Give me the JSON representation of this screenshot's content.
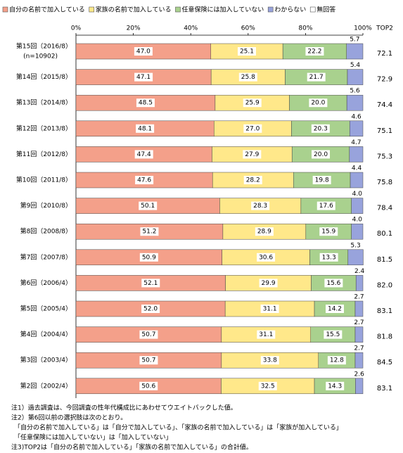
{
  "chart_data": {
    "type": "stacked-bar-horizontal",
    "categories": [
      "第15回（2016/8）",
      "第14回（2015/8）",
      "第13回（2014/8）",
      "第12回（2013/8）",
      "第11回（2012/8）",
      "第10回（2011/8）",
      "第9回（2010/8）",
      "第8回（2008/8）",
      "第7回（2007/8）",
      "第6回（2006/4）",
      "第5回（2005/4）",
      "第4回（2004/4）",
      "第3回（2003/4）",
      "第2回（2002/4）"
    ],
    "first_category_note": "(n=10902)",
    "xlim": [
      0,
      100
    ],
    "xticks": [
      {
        "value": 0,
        "label": "0%"
      },
      {
        "value": 20,
        "label": "20%"
      },
      {
        "value": 40,
        "label": "40%"
      },
      {
        "value": 60,
        "label": "60%"
      },
      {
        "value": 80,
        "label": "80%"
      },
      {
        "value": 100,
        "label": "100%"
      }
    ],
    "series": [
      {
        "name": "自分の名前で加入している",
        "color": "#f4a08a",
        "values": [
          47.0,
          47.1,
          48.5,
          48.1,
          47.4,
          47.6,
          50.1,
          51.2,
          50.9,
          52.1,
          52.0,
          50.7,
          50.7,
          50.6
        ],
        "value_labels": [
          "47.0",
          "47.1",
          "48.5",
          "48.1",
          "47.4",
          "47.6",
          "50.1",
          "51.2",
          "50.9",
          "52.1",
          "52.0",
          "50.7",
          "50.7",
          "50.6"
        ]
      },
      {
        "name": "家族の名前で加入している",
        "color": "#ffe88a",
        "values": [
          25.1,
          25.8,
          25.9,
          27.0,
          27.9,
          28.2,
          28.3,
          28.9,
          30.6,
          29.9,
          31.1,
          31.1,
          33.8,
          32.5
        ],
        "value_labels": [
          "25.1",
          "25.8",
          "25.9",
          "27.0",
          "27.9",
          "28.2",
          "28.3",
          "28.9",
          "30.6",
          "29.9",
          "31.1",
          "31.1",
          "33.8",
          "32.5"
        ]
      },
      {
        "name": "任意保険には加入していない",
        "color": "#a9d18e",
        "values": [
          22.2,
          21.7,
          20.0,
          20.3,
          20.0,
          19.8,
          17.6,
          15.9,
          13.3,
          15.6,
          14.2,
          15.5,
          12.8,
          14.3
        ],
        "value_labels": [
          "22.2",
          "21.7",
          "20.0",
          "20.3",
          "20.0",
          "19.8",
          "17.6",
          "15.9",
          "13.3",
          "15.6",
          "14.2",
          "15.5",
          "12.8",
          "14.3"
        ]
      },
      {
        "name": "わからない",
        "color": "#98a3dc",
        "values": [
          5.7,
          5.4,
          5.6,
          4.6,
          4.7,
          4.4,
          4.0,
          4.0,
          5.3,
          2.4,
          2.7,
          2.7,
          2.7,
          2.6
        ],
        "value_labels": [
          "5.7",
          "5.4",
          "5.6",
          "4.6",
          "4.7",
          "4.4",
          "4.0",
          "4.0",
          "5.3",
          "2.4",
          "2.7",
          "2.7",
          "2.7",
          "2.6"
        ]
      },
      {
        "name": "無回答",
        "color": "#ffffff",
        "values": [
          0,
          0,
          0,
          0,
          0,
          0,
          0,
          0,
          0,
          0,
          0,
          0,
          0,
          0
        ]
      }
    ],
    "top2": {
      "header": "TOP2",
      "values": [
        72.1,
        72.9,
        74.4,
        75.1,
        75.3,
        75.8,
        78.4,
        80.1,
        81.5,
        82.0,
        83.1,
        81.8,
        84.5,
        83.1
      ],
      "value_labels": [
        "72.1",
        "72.9",
        "74.4",
        "75.1",
        "75.3",
        "75.8",
        "78.4",
        "80.1",
        "81.5",
        "82.0",
        "83.1",
        "81.8",
        "84.5",
        "83.1"
      ]
    },
    "notes": [
      "注1）過去調査は、今回調査の性年代構成比にあわせてウエイトバックした値。",
      "注2）第6回以前の選択肢は次のとおり。",
      "「自分の名前で加入している」は「自分で加入している」、「家族の名前で加入している」は「家族が加入している」",
      "「任意保険には加入していない」は「加入していない」",
      "注3)TOP2は「自分の名前で加入している」「家族の名前で加入している」の合計値。"
    ]
  }
}
